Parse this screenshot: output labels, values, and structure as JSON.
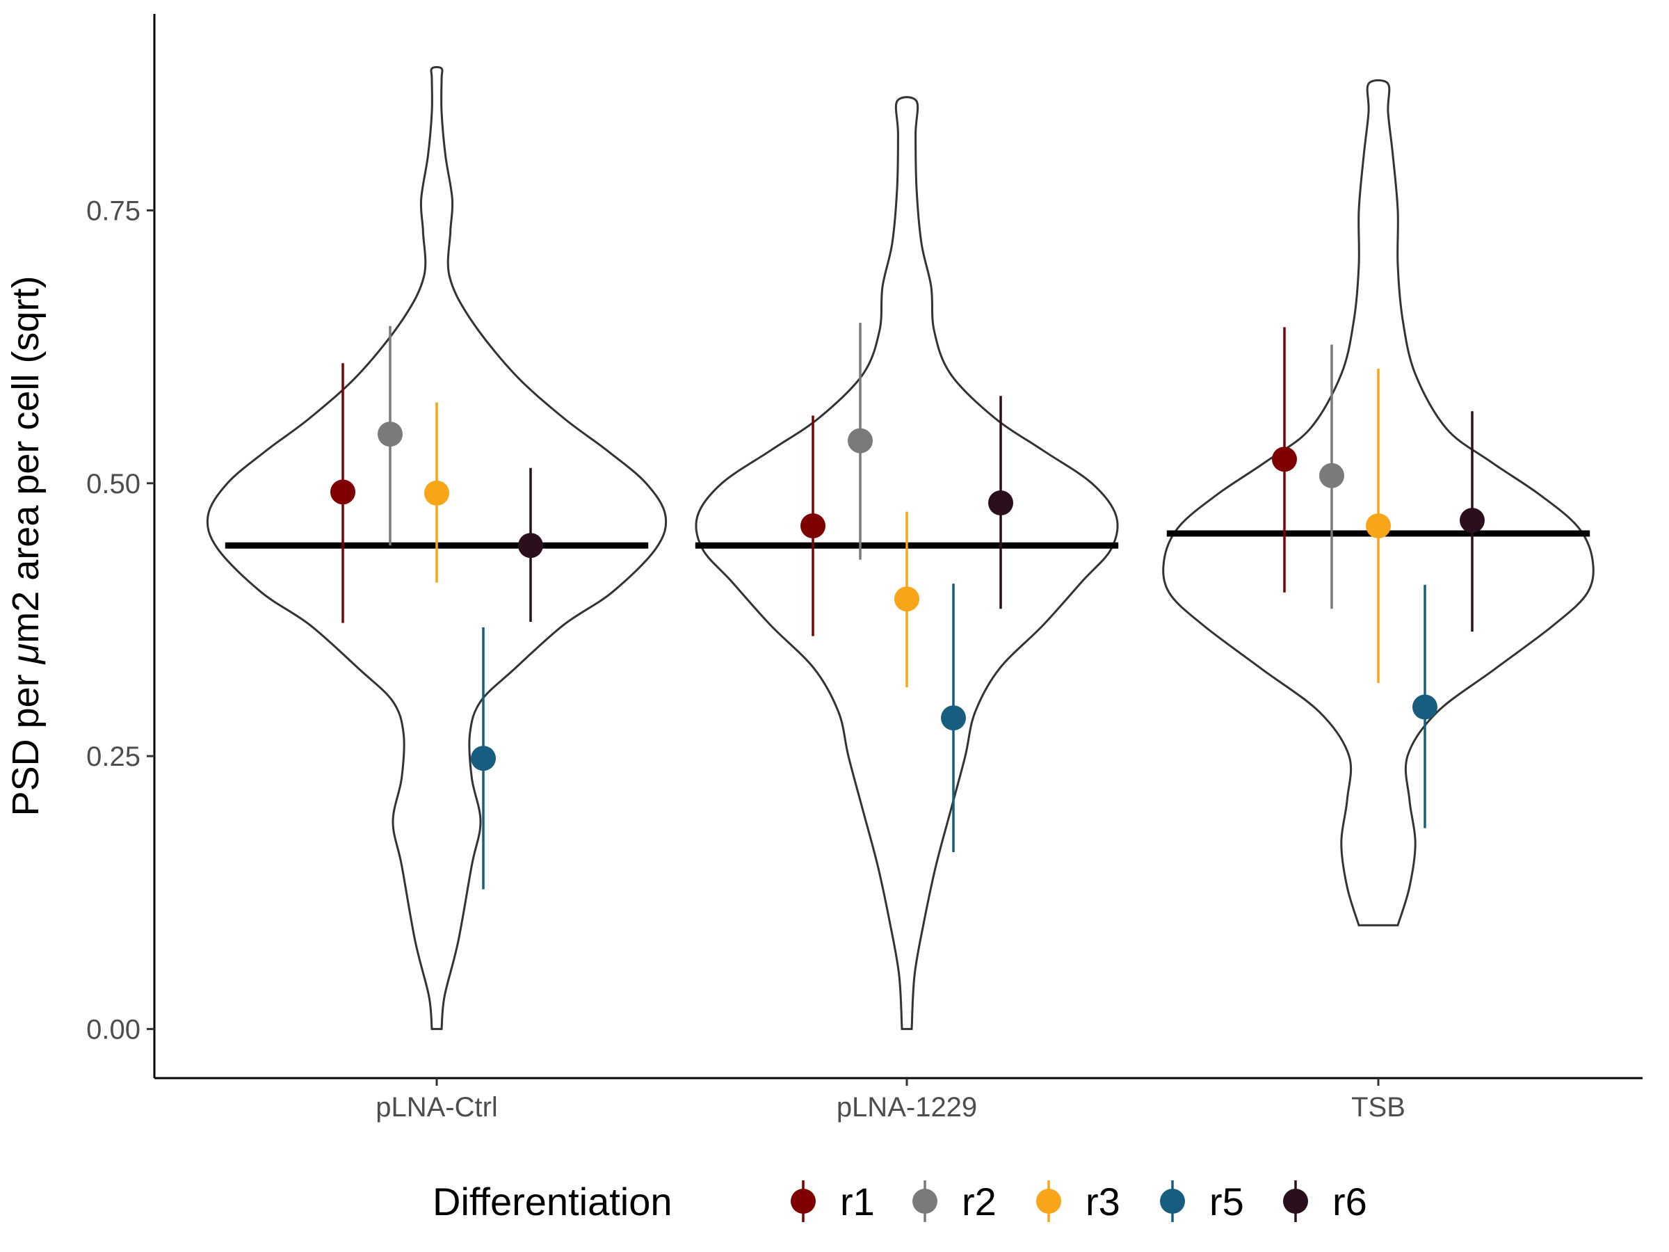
{
  "chart_data": {
    "type": "violin",
    "categories": [
      "pLNA-Ctrl",
      "pLNA-1229",
      "TSB"
    ],
    "ylabel": {
      "prefix": "PSD per ",
      "mu": "μ",
      "suffix": "m2 area per cell (sqrt)"
    },
    "xlabel": "",
    "ylim": [
      -0.045,
      0.93
    ],
    "yticks": [
      {
        "value": 0.0,
        "label": "0.00"
      },
      {
        "value": 0.25,
        "label": "0.25"
      },
      {
        "value": 0.5,
        "label": "0.50"
      },
      {
        "value": 0.75,
        "label": "0.75"
      }
    ],
    "grid": false,
    "legend": {
      "title": "Differentiation",
      "position": "bottom",
      "entries": [
        {
          "name": "r1",
          "color": "#7f0000"
        },
        {
          "name": "r2",
          "color": "#7a7a7a"
        },
        {
          "name": "r3",
          "color": "#f9a51a"
        },
        {
          "name": "r5",
          "color": "#175d7f"
        },
        {
          "name": "r6",
          "color": "#2b0f1f"
        }
      ]
    },
    "group_means": [
      0.443,
      0.443,
      0.454
    ],
    "violins": [
      {
        "category": "pLNA-Ctrl",
        "half_width": [
          [
            0.0,
            0.005
          ],
          [
            0.03,
            0.008
          ],
          [
            0.08,
            0.022
          ],
          [
            0.15,
            0.036
          ],
          [
            0.19,
            0.045
          ],
          [
            0.23,
            0.036
          ],
          [
            0.27,
            0.034
          ],
          [
            0.3,
            0.045
          ],
          [
            0.33,
            0.08
          ],
          [
            0.37,
            0.13
          ],
          [
            0.4,
            0.18
          ],
          [
            0.44,
            0.225
          ],
          [
            0.47,
            0.235
          ],
          [
            0.5,
            0.215
          ],
          [
            0.53,
            0.175
          ],
          [
            0.56,
            0.13
          ],
          [
            0.6,
            0.08
          ],
          [
            0.65,
            0.035
          ],
          [
            0.69,
            0.013
          ],
          [
            0.73,
            0.014
          ],
          [
            0.76,
            0.016
          ],
          [
            0.8,
            0.009
          ],
          [
            0.84,
            0.005
          ],
          [
            0.87,
            0.005
          ],
          [
            0.88,
            0.005
          ]
        ]
      },
      {
        "category": "pLNA-1229",
        "half_width": [
          [
            0.0,
            0.005
          ],
          [
            0.05,
            0.008
          ],
          [
            0.1,
            0.018
          ],
          [
            0.15,
            0.03
          ],
          [
            0.2,
            0.045
          ],
          [
            0.25,
            0.06
          ],
          [
            0.29,
            0.07
          ],
          [
            0.33,
            0.095
          ],
          [
            0.37,
            0.14
          ],
          [
            0.41,
            0.18
          ],
          [
            0.44,
            0.21
          ],
          [
            0.47,
            0.215
          ],
          [
            0.5,
            0.19
          ],
          [
            0.53,
            0.14
          ],
          [
            0.56,
            0.09
          ],
          [
            0.6,
            0.045
          ],
          [
            0.64,
            0.028
          ],
          [
            0.68,
            0.025
          ],
          [
            0.72,
            0.015
          ],
          [
            0.77,
            0.01
          ],
          [
            0.82,
            0.009
          ],
          [
            0.85,
            0.01
          ]
        ]
      },
      {
        "category": "TSB",
        "half_width": [
          [
            0.095,
            0.02
          ],
          [
            0.13,
            0.032
          ],
          [
            0.17,
            0.038
          ],
          [
            0.21,
            0.032
          ],
          [
            0.25,
            0.03
          ],
          [
            0.29,
            0.06
          ],
          [
            0.33,
            0.12
          ],
          [
            0.37,
            0.18
          ],
          [
            0.4,
            0.215
          ],
          [
            0.43,
            0.22
          ],
          [
            0.46,
            0.205
          ],
          [
            0.49,
            0.165
          ],
          [
            0.52,
            0.115
          ],
          [
            0.55,
            0.07
          ],
          [
            0.6,
            0.038
          ],
          [
            0.65,
            0.025
          ],
          [
            0.7,
            0.02
          ],
          [
            0.75,
            0.02
          ],
          [
            0.8,
            0.015
          ],
          [
            0.84,
            0.01
          ],
          [
            0.866,
            0.01
          ]
        ]
      }
    ],
    "series": [
      {
        "name": "r1",
        "color": "#7f0000",
        "mean": [
          0.492,
          0.461,
          0.522
        ],
        "lower": [
          0.372,
          0.36,
          0.4
        ],
        "upper": [
          0.61,
          0.562,
          0.643
        ]
      },
      {
        "name": "r2",
        "color": "#7a7a7a",
        "mean": [
          0.545,
          0.539,
          0.507
        ],
        "lower": [
          0.443,
          0.43,
          0.385
        ],
        "upper": [
          0.644,
          0.647,
          0.627
        ]
      },
      {
        "name": "r3",
        "color": "#f9a51a",
        "mean": [
          0.491,
          0.394,
          0.461
        ],
        "lower": [
          0.409,
          0.313,
          0.317
        ],
        "upper": [
          0.574,
          0.474,
          0.605
        ]
      },
      {
        "name": "r5",
        "color": "#175d7f",
        "mean": [
          0.248,
          0.285,
          0.295
        ],
        "lower": [
          0.128,
          0.162,
          0.184
        ],
        "upper": [
          0.368,
          0.408,
          0.407
        ]
      },
      {
        "name": "r6",
        "color": "#2b0f1f",
        "mean": [
          0.443,
          0.482,
          0.466
        ],
        "lower": [
          0.373,
          0.385,
          0.364
        ],
        "upper": [
          0.514,
          0.58,
          0.566
        ]
      }
    ]
  }
}
